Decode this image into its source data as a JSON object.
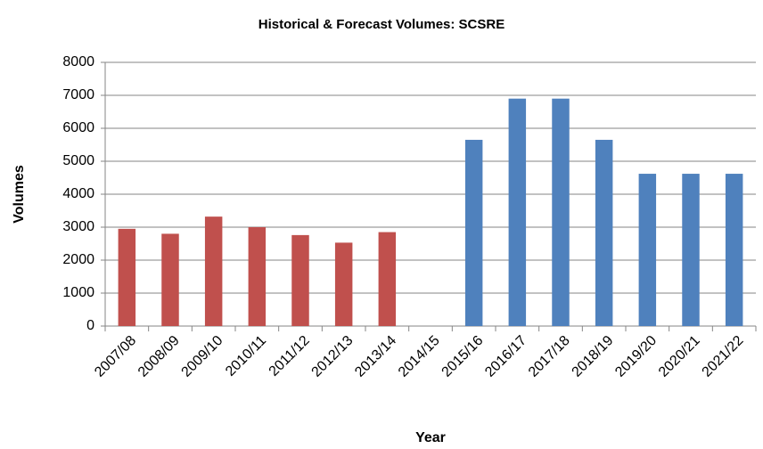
{
  "chart_data": {
    "type": "bar",
    "title": "Historical & Forecast Volumes: SCSRE",
    "x_label": "Year",
    "y_label": "Volumes",
    "categories": [
      "2007/08",
      "2008/09",
      "2009/10",
      "2010/11",
      "2011/12",
      "2012/13",
      "2013/14",
      "2014/15",
      "2015/16",
      "2016/17",
      "2017/18",
      "2018/19",
      "2019/20",
      "2020/21",
      "2021/22"
    ],
    "series": [
      {
        "color": "#c0504d",
        "values": [
          2950,
          2800,
          3320,
          3000,
          2760,
          2530,
          2850,
          null,
          null,
          null,
          null,
          null,
          null,
          null,
          null
        ]
      },
      {
        "color": "#4f81bd",
        "values": [
          null,
          null,
          null,
          null,
          null,
          null,
          null,
          null,
          5650,
          6900,
          6900,
          5650,
          4620,
          4620,
          4620
        ]
      }
    ],
    "ylim": [
      0,
      8000
    ],
    "yticks": [
      0,
      1000,
      2000,
      3000,
      4000,
      5000,
      6000,
      7000,
      8000
    ],
    "grid": true
  }
}
